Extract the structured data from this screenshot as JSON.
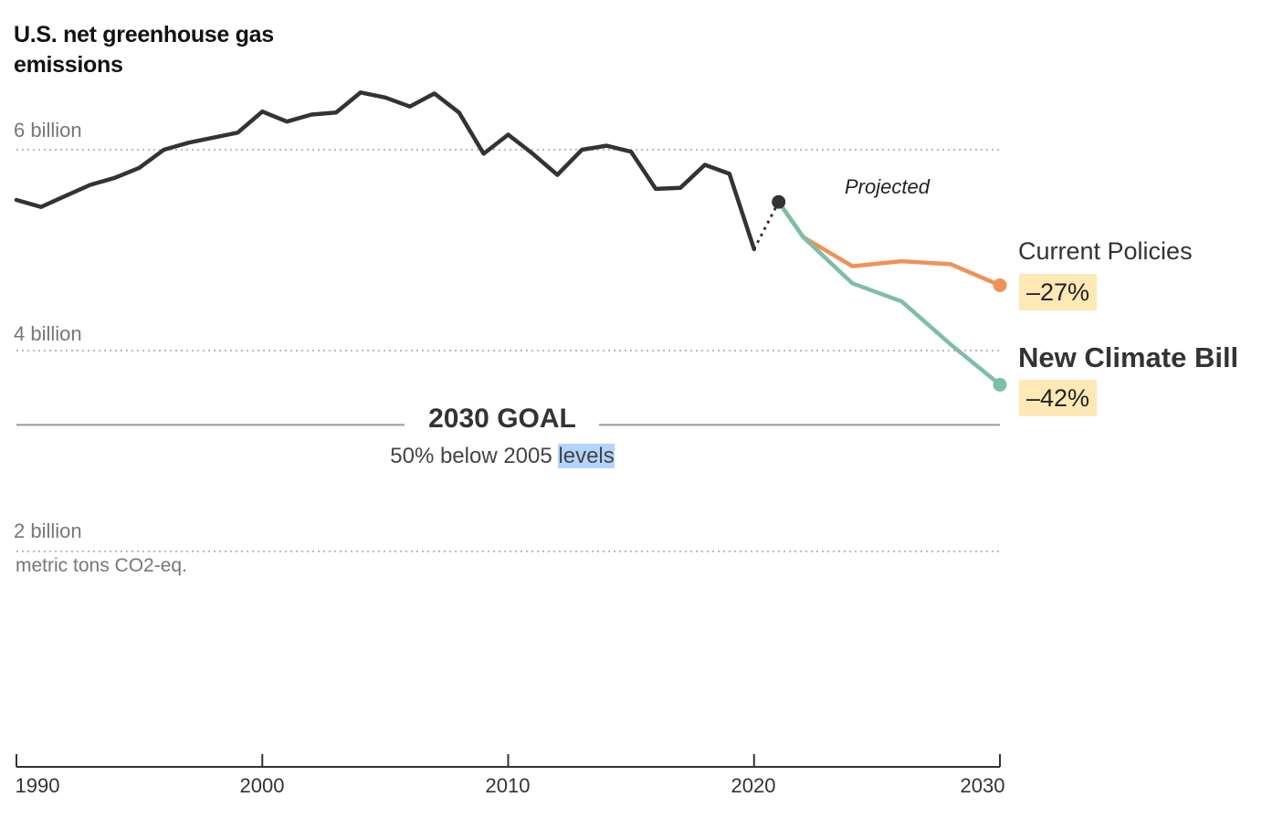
{
  "chart_data": {
    "type": "line",
    "title": "U.S. net greenhouse gas emissions",
    "ylabel": "metric tons CO2-eq.",
    "xlim": [
      1990,
      2030
    ],
    "ylim": [
      0,
      7
    ],
    "grid": true,
    "y_ticks": [
      {
        "value": 6,
        "label": "6 billion"
      },
      {
        "value": 4,
        "label": "4 billion"
      },
      {
        "value": 2,
        "label": "2 billion"
      }
    ],
    "x_ticks": [
      1990,
      2000,
      2010,
      2020,
      2030
    ],
    "series": [
      {
        "name": "",
        "color": "#333333",
        "x": [
          1990,
          1991,
          1992,
          1993,
          1994,
          1995,
          1996,
          1997,
          1998,
          1999,
          2000,
          2001,
          2002,
          2003,
          2004,
          2005,
          2006,
          2007,
          2008,
          2009,
          2010,
          2011,
          2012,
          2013,
          2014,
          2015,
          2016,
          2017,
          2018,
          2019,
          2020
        ],
        "y": [
          5.5,
          5.43,
          5.54,
          5.65,
          5.72,
          5.82,
          6.0,
          6.07,
          6.12,
          6.17,
          6.38,
          6.28,
          6.35,
          6.37,
          6.57,
          6.52,
          6.43,
          6.56,
          6.37,
          5.96,
          6.15,
          5.96,
          5.75,
          6.0,
          6.04,
          5.98,
          5.61,
          5.62,
          5.85,
          5.76,
          5.01
        ]
      },
      {
        "name": "Projected",
        "color": "#333333",
        "dashed": true,
        "x": [
          2020,
          2021
        ],
        "y": [
          5.01,
          5.48
        ]
      },
      {
        "name": "Current Policies",
        "color": "#f0915a",
        "x": [
          2021,
          2022,
          2024,
          2026,
          2028,
          2030
        ],
        "y": [
          5.48,
          5.13,
          4.84,
          4.89,
          4.86,
          4.65
        ]
      },
      {
        "name": "New Climate Bill",
        "color": "#7dbfa5",
        "x": [
          2021,
          2022,
          2024,
          2026,
          2028,
          2030
        ],
        "y": [
          5.48,
          5.13,
          4.67,
          4.49,
          4.06,
          3.66
        ]
      }
    ],
    "annotations": {
      "projected_label": "Projected",
      "current_policies_change": "–27%",
      "new_climate_bill_change": "–42%",
      "goal_title": "2030 GOAL",
      "goal_subtitle_prefix": "50% below 2005 ",
      "goal_subtitle_highlight": "levels",
      "goal_value": 3.26
    }
  }
}
